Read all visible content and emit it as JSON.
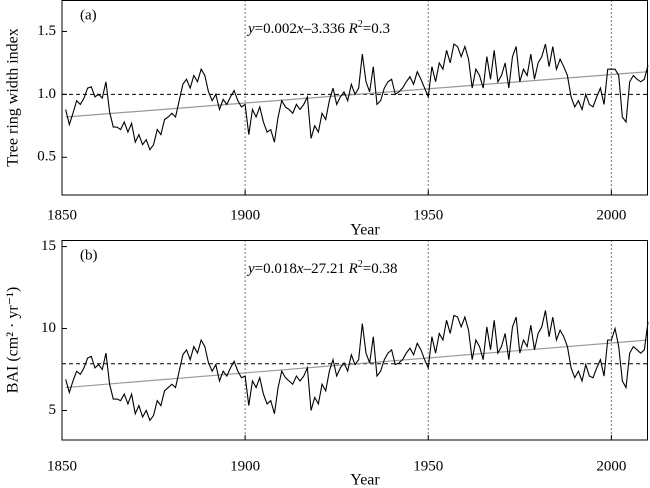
{
  "chart_data": [
    {
      "type": "line",
      "title": "(a)",
      "ylabel": "Tree ring width index",
      "xlabel": "Year",
      "annotation_parts": [
        "y",
        "=0.002",
        "x",
        "–3.336  ",
        "R",
        "2",
        "=0.3"
      ],
      "xlim": [
        1850,
        2010
      ],
      "xticks": [
        1850,
        1900,
        1950,
        2000
      ],
      "vlines": [
        1900,
        1950,
        2000
      ],
      "ylim": [
        0.2,
        1.75
      ],
      "yticks": [
        0.5,
        {
          "value": 1.0,
          "label": "1.0"
        },
        1.5
      ],
      "reference_line": 1.0,
      "trend": {
        "x": [
          1851,
          2010
        ],
        "values": [
          0.82,
          1.18
        ]
      },
      "x": [
        1851,
        1852,
        1853,
        1854,
        1855,
        1856,
        1857,
        1858,
        1859,
        1860,
        1861,
        1862,
        1863,
        1864,
        1865,
        1866,
        1867,
        1868,
        1869,
        1870,
        1871,
        1872,
        1873,
        1874,
        1875,
        1876,
        1877,
        1878,
        1879,
        1880,
        1881,
        1882,
        1883,
        1884,
        1885,
        1886,
        1887,
        1888,
        1889,
        1890,
        1891,
        1892,
        1893,
        1894,
        1895,
        1896,
        1897,
        1898,
        1899,
        1900,
        1901,
        1902,
        1903,
        1904,
        1905,
        1906,
        1907,
        1908,
        1909,
        1910,
        1911,
        1912,
        1913,
        1914,
        1915,
        1916,
        1917,
        1918,
        1919,
        1920,
        1921,
        1922,
        1923,
        1924,
        1925,
        1926,
        1927,
        1928,
        1929,
        1930,
        1931,
        1932,
        1933,
        1934,
        1935,
        1936,
        1937,
        1938,
        1939,
        1940,
        1941,
        1942,
        1943,
        1944,
        1945,
        1946,
        1947,
        1948,
        1949,
        1950,
        1951,
        1952,
        1953,
        1954,
        1955,
        1956,
        1957,
        1958,
        1959,
        1960,
        1961,
        1962,
        1963,
        1964,
        1965,
        1966,
        1967,
        1968,
        1969,
        1970,
        1971,
        1972,
        1973,
        1974,
        1975,
        1976,
        1977,
        1978,
        1979,
        1980,
        1981,
        1982,
        1983,
        1984,
        1985,
        1986,
        1987,
        1988,
        1989,
        1990,
        1991,
        1992,
        1993,
        1994,
        1995,
        1996,
        1997,
        1998,
        1999,
        2000,
        2001,
        2002,
        2003,
        2004,
        2005,
        2006,
        2007,
        2008,
        2009,
        2010
      ],
      "series": [
        {
          "color": "#000000",
          "values": [
            0.88,
            0.76,
            0.85,
            0.95,
            0.92,
            0.97,
            1.05,
            1.06,
            0.98,
            1.0,
            0.97,
            1.1,
            0.86,
            0.74,
            0.74,
            0.72,
            0.78,
            0.7,
            0.77,
            0.62,
            0.68,
            0.6,
            0.64,
            0.56,
            0.6,
            0.72,
            0.68,
            0.8,
            0.82,
            0.85,
            0.82,
            0.95,
            1.08,
            1.12,
            1.05,
            1.15,
            1.1,
            1.2,
            1.15,
            1.02,
            0.95,
            1.0,
            0.88,
            0.96,
            0.92,
            0.98,
            1.03,
            0.95,
            0.9,
            0.92,
            0.68,
            0.88,
            0.82,
            0.9,
            0.78,
            0.7,
            0.72,
            0.62,
            0.82,
            0.95,
            0.9,
            0.88,
            0.85,
            0.92,
            0.88,
            0.92,
            0.98,
            0.65,
            0.75,
            0.7,
            0.85,
            0.8,
            0.95,
            1.05,
            0.92,
            0.98,
            1.02,
            0.95,
            1.08,
            1.0,
            1.05,
            1.32,
            1.1,
            1.02,
            1.22,
            0.92,
            0.95,
            1.05,
            1.1,
            1.12,
            1.0,
            1.02,
            1.05,
            1.1,
            1.14,
            1.08,
            1.18,
            1.12,
            1.05,
            0.98,
            1.22,
            1.1,
            1.25,
            1.2,
            1.35,
            1.25,
            1.4,
            1.38,
            1.3,
            1.38,
            1.28,
            1.05,
            1.2,
            1.15,
            1.05,
            1.3,
            1.12,
            1.35,
            1.1,
            1.15,
            1.25,
            1.05,
            1.3,
            1.38,
            1.1,
            1.2,
            1.15,
            1.32,
            1.12,
            1.25,
            1.3,
            1.4,
            1.22,
            1.38,
            1.2,
            1.28,
            1.22,
            1.15,
            0.98,
            0.9,
            0.95,
            0.88,
            1.0,
            0.92,
            0.9,
            0.98,
            1.05,
            0.92,
            1.2,
            1.2,
            1.2,
            1.15,
            0.82,
            0.78,
            1.1,
            1.15,
            1.12,
            1.1,
            1.12,
            1.23
          ]
        }
      ]
    },
    {
      "type": "line",
      "title": "(b)",
      "ylabel": "BAI (cm² · yr⁻¹)",
      "xlabel": "Year",
      "annotation_parts": [
        "y",
        "=0.018",
        "x",
        "–27.21  ",
        "R",
        "2",
        "=0.38"
      ],
      "xlim": [
        1850,
        2010
      ],
      "xticks": [
        1850,
        1900,
        1950,
        2000
      ],
      "vlines": [
        1900,
        1950,
        2000
      ],
      "ylim": [
        3.2,
        15.4
      ],
      "yticks": [
        5,
        10,
        15
      ],
      "reference_line": 7.85,
      "trend": {
        "x": [
          1851,
          2010
        ],
        "values": [
          6.4,
          9.3
        ]
      },
      "x": [
        1851,
        1852,
        1853,
        1854,
        1855,
        1856,
        1857,
        1858,
        1859,
        1860,
        1861,
        1862,
        1863,
        1864,
        1865,
        1866,
        1867,
        1868,
        1869,
        1870,
        1871,
        1872,
        1873,
        1874,
        1875,
        1876,
        1877,
        1878,
        1879,
        1880,
        1881,
        1882,
        1883,
        1884,
        1885,
        1886,
        1887,
        1888,
        1889,
        1890,
        1891,
        1892,
        1893,
        1894,
        1895,
        1896,
        1897,
        1898,
        1899,
        1900,
        1901,
        1902,
        1903,
        1904,
        1905,
        1906,
        1907,
        1908,
        1909,
        1910,
        1911,
        1912,
        1913,
        1914,
        1915,
        1916,
        1917,
        1918,
        1919,
        1920,
        1921,
        1922,
        1923,
        1924,
        1925,
        1926,
        1927,
        1928,
        1929,
        1930,
        1931,
        1932,
        1933,
        1934,
        1935,
        1936,
        1937,
        1938,
        1939,
        1940,
        1941,
        1942,
        1943,
        1944,
        1945,
        1946,
        1947,
        1948,
        1949,
        1950,
        1951,
        1952,
        1953,
        1954,
        1955,
        1956,
        1957,
        1958,
        1959,
        1960,
        1961,
        1962,
        1963,
        1964,
        1965,
        1966,
        1967,
        1968,
        1969,
        1970,
        1971,
        1972,
        1973,
        1974,
        1975,
        1976,
        1977,
        1978,
        1979,
        1980,
        1981,
        1982,
        1983,
        1984,
        1985,
        1986,
        1987,
        1988,
        1989,
        1990,
        1991,
        1992,
        1993,
        1994,
        1995,
        1996,
        1997,
        1998,
        1999,
        2000,
        2001,
        2002,
        2003,
        2004,
        2005,
        2006,
        2007,
        2008,
        2009,
        2010
      ],
      "series": [
        {
          "color": "#000000",
          "values": [
            6.9,
            6.1,
            6.8,
            7.4,
            7.2,
            7.6,
            8.2,
            8.3,
            7.6,
            7.8,
            7.5,
            8.5,
            6.6,
            5.7,
            5.7,
            5.6,
            6.0,
            5.4,
            6.0,
            4.8,
            5.3,
            4.6,
            5.0,
            4.4,
            4.7,
            5.6,
            5.3,
            6.2,
            6.4,
            6.6,
            6.4,
            7.4,
            8.4,
            8.7,
            8.1,
            8.9,
            8.5,
            9.3,
            8.9,
            7.9,
            7.4,
            7.8,
            6.8,
            7.4,
            7.1,
            7.6,
            8.0,
            7.4,
            7.0,
            7.1,
            5.3,
            6.8,
            6.4,
            7.0,
            6.0,
            5.4,
            5.6,
            4.8,
            6.4,
            7.4,
            7.0,
            6.8,
            6.6,
            7.1,
            6.8,
            7.1,
            7.6,
            5.0,
            5.8,
            5.4,
            6.6,
            6.2,
            7.4,
            8.1,
            7.1,
            7.6,
            7.9,
            7.4,
            8.4,
            7.8,
            8.1,
            10.3,
            8.5,
            7.9,
            9.5,
            7.1,
            7.4,
            8.1,
            8.5,
            8.7,
            7.8,
            7.9,
            8.1,
            8.5,
            8.8,
            8.4,
            9.1,
            8.7,
            8.1,
            7.6,
            9.5,
            8.5,
            9.7,
            9.3,
            10.5,
            9.7,
            10.8,
            10.7,
            10.1,
            10.7,
            9.9,
            8.1,
            9.3,
            8.9,
            8.1,
            10.1,
            8.7,
            10.5,
            8.5,
            8.9,
            9.7,
            8.1,
            10.1,
            10.7,
            8.5,
            9.3,
            8.9,
            10.2,
            8.7,
            9.7,
            10.1,
            11.1,
            9.5,
            10.7,
            9.3,
            9.9,
            9.5,
            8.9,
            7.6,
            7.0,
            7.4,
            6.8,
            7.8,
            7.1,
            7.0,
            7.6,
            8.1,
            7.1,
            9.3,
            9.3,
            10.0,
            8.9,
            6.8,
            6.4,
            8.5,
            8.9,
            8.7,
            8.5,
            8.7,
            10.4
          ]
        }
      ]
    }
  ]
}
